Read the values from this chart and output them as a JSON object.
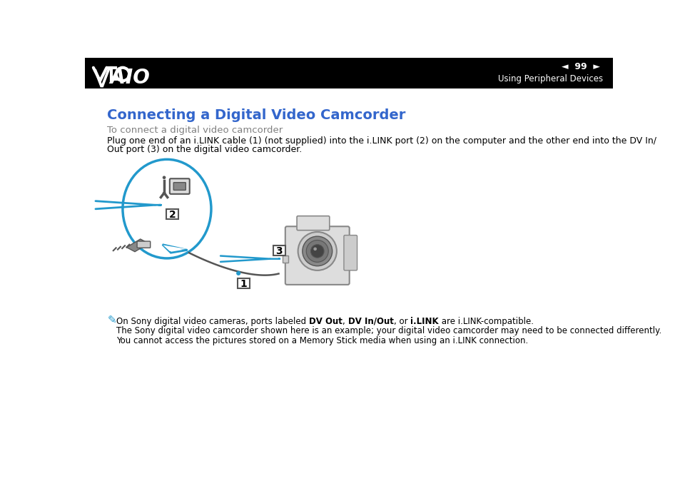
{
  "header_bg": "#000000",
  "page_number": "99",
  "section_title": "Using Peripheral Devices",
  "main_title": "Connecting a Digital Video Camcorder",
  "main_title_color": "#3366cc",
  "subtitle": "To connect a digital video camcorder",
  "subtitle_color": "#808080",
  "body_line1": "Plug one end of an i.LINK cable (1) (not supplied) into the i.LINK port (2) on the computer and the other end into the DV In/",
  "body_line2": "Out port (3) on the digital video camcorder.",
  "note_pre": "On Sony digital video cameras, ports labeled ",
  "note_bold1": "DV Out",
  "note_mid1": ", ",
  "note_bold2": "DV In/Out",
  "note_mid2": ", or ",
  "note_bold3": "i.LINK",
  "note_post": " are i.LINK-compatible.",
  "note_line2": "The Sony digital video camcorder shown here is an example; your digital video camcorder may need to be connected differently.",
  "note_line3": "You cannot access the pictures stored on a Memory Stick media when using an i.LINK connection.",
  "bg_color": "#ffffff",
  "body_color": "#000000",
  "cable_color": "#2299cc",
  "label_bg": "#2299cc",
  "label_border": "#555555",
  "gray_dark": "#555555",
  "gray_mid": "#888888",
  "gray_light": "#cccccc",
  "gray_vlight": "#dddddd"
}
